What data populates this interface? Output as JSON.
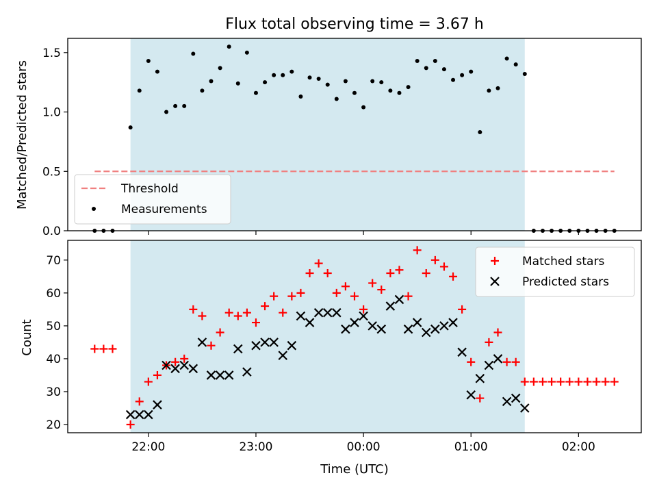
{
  "chart_data": [
    {
      "type": "scatter",
      "title": "Flux total observing time = 3.67 h",
      "ylabel": "Matched/Predicted stars",
      "xlabel": "",
      "xlim": [
        "21:15",
        "02:35"
      ],
      "ylim": [
        0,
        1.62
      ],
      "yticks": [
        "0.0",
        "0.5",
        "1.0",
        "1.5"
      ],
      "observing_window": [
        "21:50",
        "01:30"
      ],
      "observing_window_color": "#d4e9f0",
      "legend": {
        "placement": "lower-left",
        "entries": [
          "Threshold",
          "Measurements"
        ]
      },
      "threshold": {
        "name": "Threshold",
        "value": 0.5,
        "from": "21:30",
        "to": "02:20",
        "color": "#f08080",
        "style": "dashed"
      },
      "series": [
        {
          "name": "Measurements",
          "color": "#000000",
          "marker": "dot",
          "points": [
            [
              "21:30",
              0.0
            ],
            [
              "21:35",
              0.0
            ],
            [
              "21:40",
              0.0
            ],
            [
              "21:50",
              0.87
            ],
            [
              "21:55",
              1.18
            ],
            [
              "22:00",
              1.43
            ],
            [
              "22:05",
              1.34
            ],
            [
              "22:10",
              1.0
            ],
            [
              "22:15",
              1.05
            ],
            [
              "22:20",
              1.05
            ],
            [
              "22:25",
              1.49
            ],
            [
              "22:30",
              1.18
            ],
            [
              "22:35",
              1.26
            ],
            [
              "22:40",
              1.37
            ],
            [
              "22:45",
              1.55
            ],
            [
              "22:50",
              1.24
            ],
            [
              "22:55",
              1.5
            ],
            [
              "23:00",
              1.16
            ],
            [
              "23:05",
              1.25
            ],
            [
              "23:10",
              1.31
            ],
            [
              "23:15",
              1.31
            ],
            [
              "23:20",
              1.34
            ],
            [
              "23:25",
              1.13
            ],
            [
              "23:30",
              1.29
            ],
            [
              "23:35",
              1.28
            ],
            [
              "23:40",
              1.23
            ],
            [
              "23:45",
              1.11
            ],
            [
              "23:50",
              1.26
            ],
            [
              "23:55",
              1.16
            ],
            [
              "00:00",
              1.04
            ],
            [
              "00:05",
              1.26
            ],
            [
              "00:10",
              1.25
            ],
            [
              "00:15",
              1.18
            ],
            [
              "00:20",
              1.16
            ],
            [
              "00:25",
              1.21
            ],
            [
              "00:30",
              1.43
            ],
            [
              "00:35",
              1.37
            ],
            [
              "00:40",
              1.43
            ],
            [
              "00:45",
              1.36
            ],
            [
              "00:50",
              1.27
            ],
            [
              "00:55",
              1.31
            ],
            [
              "01:00",
              1.34
            ],
            [
              "01:05",
              0.83
            ],
            [
              "01:10",
              1.18
            ],
            [
              "01:15",
              1.2
            ],
            [
              "01:20",
              1.45
            ],
            [
              "01:25",
              1.4
            ],
            [
              "01:30",
              1.32
            ],
            [
              "01:35",
              0.0
            ],
            [
              "01:40",
              0.0
            ],
            [
              "01:45",
              0.0
            ],
            [
              "01:50",
              0.0
            ],
            [
              "01:55",
              0.0
            ],
            [
              "02:00",
              0.0
            ],
            [
              "02:05",
              0.0
            ],
            [
              "02:10",
              0.0
            ],
            [
              "02:15",
              0.0
            ],
            [
              "02:20",
              0.0
            ]
          ]
        }
      ]
    },
    {
      "type": "scatter",
      "title": "",
      "xlabel": "Time (UTC)",
      "ylabel": "Count",
      "xlim": [
        "21:15",
        "02:35"
      ],
      "ylim": [
        17.5,
        76
      ],
      "xticks": [
        "22:00",
        "23:00",
        "00:00",
        "01:00",
        "02:00"
      ],
      "yticks": [
        "20",
        "30",
        "40",
        "50",
        "60",
        "70"
      ],
      "observing_window": [
        "21:50",
        "01:30"
      ],
      "observing_window_color": "#d4e9f0",
      "legend": {
        "placement": "top-right",
        "entries": [
          "Matched stars",
          "Predicted stars"
        ]
      },
      "series": [
        {
          "name": "Matched stars",
          "color": "#ff0000",
          "marker": "plus",
          "points": [
            [
              "21:30",
              43
            ],
            [
              "21:35",
              43
            ],
            [
              "21:40",
              43
            ],
            [
              "21:50",
              20
            ],
            [
              "21:55",
              27
            ],
            [
              "22:00",
              33
            ],
            [
              "22:05",
              35
            ],
            [
              "22:10",
              38
            ],
            [
              "22:15",
              39
            ],
            [
              "22:20",
              40
            ],
            [
              "22:25",
              55
            ],
            [
              "22:30",
              53
            ],
            [
              "22:35",
              44
            ],
            [
              "22:40",
              48
            ],
            [
              "22:45",
              54
            ],
            [
              "22:50",
              53
            ],
            [
              "22:55",
              54
            ],
            [
              "23:00",
              51
            ],
            [
              "23:05",
              56
            ],
            [
              "23:10",
              59
            ],
            [
              "23:15",
              54
            ],
            [
              "23:20",
              59
            ],
            [
              "23:25",
              60
            ],
            [
              "23:30",
              66
            ],
            [
              "23:35",
              69
            ],
            [
              "23:40",
              66
            ],
            [
              "23:45",
              60
            ],
            [
              "23:50",
              62
            ],
            [
              "23:55",
              59
            ],
            [
              "00:00",
              55
            ],
            [
              "00:05",
              63
            ],
            [
              "00:10",
              61
            ],
            [
              "00:15",
              66
            ],
            [
              "00:20",
              67
            ],
            [
              "00:25",
              59
            ],
            [
              "00:30",
              73
            ],
            [
              "00:35",
              66
            ],
            [
              "00:40",
              70
            ],
            [
              "00:45",
              68
            ],
            [
              "00:50",
              65
            ],
            [
              "00:55",
              55
            ],
            [
              "01:00",
              39
            ],
            [
              "01:05",
              28
            ],
            [
              "01:10",
              45
            ],
            [
              "01:15",
              48
            ],
            [
              "01:20",
              39
            ],
            [
              "01:25",
              39
            ],
            [
              "01:30",
              33
            ],
            [
              "01:35",
              33
            ],
            [
              "01:40",
              33
            ],
            [
              "01:45",
              33
            ],
            [
              "01:50",
              33
            ],
            [
              "01:55",
              33
            ],
            [
              "02:00",
              33
            ],
            [
              "02:05",
              33
            ],
            [
              "02:10",
              33
            ],
            [
              "02:15",
              33
            ],
            [
              "02:20",
              33
            ]
          ]
        },
        {
          "name": "Predicted stars",
          "color": "#000000",
          "marker": "x",
          "points": [
            [
              "21:50",
              23
            ],
            [
              "21:55",
              23
            ],
            [
              "22:00",
              23
            ],
            [
              "22:05",
              26
            ],
            [
              "22:10",
              38
            ],
            [
              "22:15",
              37
            ],
            [
              "22:20",
              38
            ],
            [
              "22:25",
              37
            ],
            [
              "22:30",
              45
            ],
            [
              "22:35",
              35
            ],
            [
              "22:40",
              35
            ],
            [
              "22:45",
              35
            ],
            [
              "22:50",
              43
            ],
            [
              "22:55",
              36
            ],
            [
              "23:00",
              44
            ],
            [
              "23:05",
              45
            ],
            [
              "23:10",
              45
            ],
            [
              "23:15",
              41
            ],
            [
              "23:20",
              44
            ],
            [
              "23:25",
              53
            ],
            [
              "23:30",
              51
            ],
            [
              "23:35",
              54
            ],
            [
              "23:40",
              54
            ],
            [
              "23:45",
              54
            ],
            [
              "23:50",
              49
            ],
            [
              "23:55",
              51
            ],
            [
              "00:00",
              53
            ],
            [
              "00:05",
              50
            ],
            [
              "00:10",
              49
            ],
            [
              "00:15",
              56
            ],
            [
              "00:20",
              58
            ],
            [
              "00:25",
              49
            ],
            [
              "00:30",
              51
            ],
            [
              "00:35",
              48
            ],
            [
              "00:40",
              49
            ],
            [
              "00:45",
              50
            ],
            [
              "00:50",
              51
            ],
            [
              "00:55",
              42
            ],
            [
              "01:00",
              29
            ],
            [
              "01:05",
              34
            ],
            [
              "01:10",
              38
            ],
            [
              "01:15",
              40
            ],
            [
              "01:20",
              27
            ],
            [
              "01:25",
              28
            ],
            [
              "01:30",
              25
            ]
          ]
        }
      ]
    }
  ]
}
